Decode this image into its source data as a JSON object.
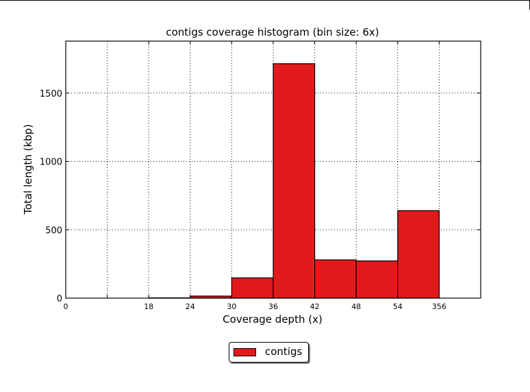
{
  "chart_data": {
    "type": "bar",
    "title": "contigs coverage histogram (bin size: 6x)",
    "xlabel": "Coverage depth (x)",
    "ylabel": "Total length (kbp)",
    "x_tick_labels": [
      "0",
      "18",
      "24",
      "30",
      "36",
      "42",
      "48",
      "54",
      "356"
    ],
    "y_ticks": [
      0,
      500,
      1000,
      1500
    ],
    "ylim": [
      0,
      1880
    ],
    "grid": true,
    "legend_position": "bottom-center",
    "series": [
      {
        "name": "contigs",
        "color": "#e31a1c",
        "bins": [
          {
            "from": "18",
            "to": "24",
            "value": 2
          },
          {
            "from": "24",
            "to": "30",
            "value": 15
          },
          {
            "from": "30",
            "to": "36",
            "value": 148
          },
          {
            "from": "36",
            "to": "42",
            "value": 1715
          },
          {
            "from": "42",
            "to": "48",
            "value": 280
          },
          {
            "from": "48",
            "to": "54",
            "value": 272
          },
          {
            "from": "54",
            "to": "356",
            "value": 640
          }
        ]
      }
    ]
  }
}
